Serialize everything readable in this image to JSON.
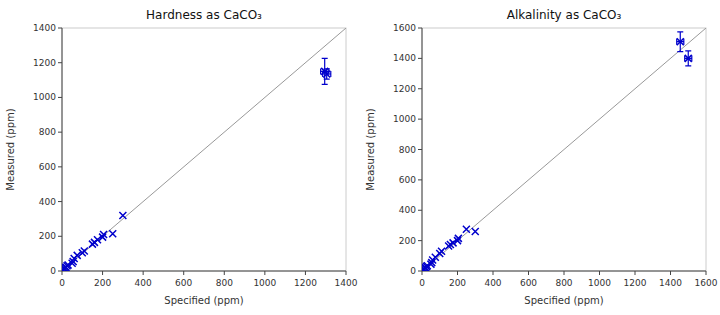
{
  "chart_data": [
    {
      "type": "scatter",
      "title": "Hardness as CaCO₃",
      "xlabel": "Specified (ppm)",
      "ylabel": "Measured (ppm)",
      "xlim": [
        0,
        1400
      ],
      "ylim": [
        0,
        1400
      ],
      "xticks": [
        0,
        200,
        400,
        600,
        800,
        1000,
        1200,
        1400
      ],
      "yticks": [
        0,
        200,
        400,
        600,
        800,
        1000,
        1200,
        1400
      ],
      "series": [
        {
          "type": "line",
          "color": "#999999",
          "x": [
            0,
            1400
          ],
          "values": [
            0,
            1400
          ]
        },
        {
          "type": "scatter",
          "color": "#0000CC",
          "marker": "x",
          "x": [
            5,
            8,
            10,
            15,
            20,
            25,
            30,
            50,
            55,
            60,
            75,
            100,
            110,
            150,
            160,
            175,
            200,
            205,
            250,
            300,
            1295,
            1305
          ],
          "values": [
            5,
            12,
            15,
            20,
            22,
            30,
            35,
            45,
            55,
            72,
            90,
            105,
            115,
            155,
            165,
            180,
            195,
            210,
            215,
            320,
            1150,
            1135
          ],
          "error_x": [
            0,
            0,
            0,
            0,
            0,
            0,
            0,
            0,
            0,
            0,
            0,
            0,
            0,
            0,
            0,
            0,
            0,
            0,
            0,
            0,
            20,
            20
          ],
          "error_y": [
            0,
            0,
            0,
            0,
            0,
            0,
            0,
            0,
            0,
            0,
            0,
            0,
            0,
            0,
            0,
            0,
            0,
            0,
            0,
            0,
            75,
            30
          ]
        }
      ]
    },
    {
      "type": "scatter",
      "title": "Alkalinity as CaCO₃",
      "xlabel": "Specified (ppm)",
      "ylabel": "Measured (ppm)",
      "xlim": [
        0,
        1600
      ],
      "ylim": [
        0,
        1600
      ],
      "xticks": [
        0,
        200,
        400,
        600,
        800,
        1000,
        1200,
        1400,
        1600
      ],
      "yticks": [
        0,
        200,
        400,
        600,
        800,
        1000,
        1200,
        1400,
        1600
      ],
      "series": [
        {
          "type": "line",
          "color": "#999999",
          "x": [
            0,
            1600
          ],
          "values": [
            0,
            1600
          ]
        },
        {
          "type": "scatter",
          "color": "#0000CC",
          "marker": "x",
          "x": [
            5,
            8,
            10,
            15,
            20,
            25,
            30,
            50,
            55,
            60,
            75,
            100,
            110,
            150,
            160,
            175,
            200,
            205,
            250,
            300,
            1455,
            1500
          ],
          "values": [
            5,
            12,
            15,
            20,
            22,
            30,
            35,
            45,
            55,
            72,
            90,
            115,
            130,
            165,
            175,
            185,
            200,
            215,
            275,
            260,
            1510,
            1400
          ],
          "error_x": [
            0,
            0,
            0,
            0,
            0,
            0,
            0,
            0,
            0,
            0,
            0,
            0,
            0,
            0,
            0,
            0,
            0,
            0,
            0,
            0,
            20,
            20
          ],
          "error_y": [
            0,
            0,
            0,
            0,
            0,
            0,
            0,
            0,
            0,
            0,
            0,
            0,
            0,
            0,
            0,
            0,
            0,
            0,
            0,
            0,
            65,
            50
          ]
        }
      ]
    }
  ]
}
